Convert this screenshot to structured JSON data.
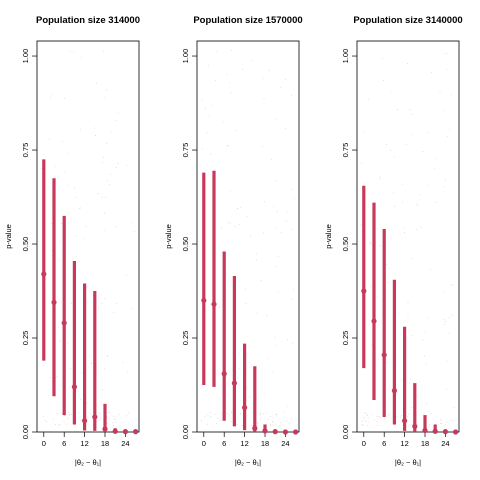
{
  "colors": {
    "accent": "#c8385a",
    "frame": "#000000",
    "noise": "#bdbdbd"
  },
  "ylabel": "p-value",
  "xlabel": "|θ₂ − θ₁|",
  "chart_data": [
    {
      "type": "scatter",
      "title": "Population size 314000",
      "ylabel": "p-value",
      "xlabel": "|θ₂ − θ₁|",
      "xticks": [
        0,
        6,
        12,
        18,
        24
      ],
      "yticks": [
        "0.00",
        "0.25",
        "0.50",
        "0.75",
        "1.00"
      ],
      "xlim": [
        -2,
        28
      ],
      "ylim": [
        0,
        1.04
      ],
      "x": [
        0,
        3,
        6,
        9,
        12,
        15,
        18,
        21,
        24,
        27
      ],
      "median": [
        0.42,
        0.345,
        0.29,
        0.12,
        0.03,
        0.04,
        0.008,
        0.002,
        0.001,
        0.001
      ],
      "lower": [
        0.19,
        0.095,
        0.045,
        0.02,
        0.004,
        0.003,
        0.0,
        0.0,
        0.0,
        0.0
      ],
      "upper": [
        0.725,
        0.675,
        0.575,
        0.455,
        0.395,
        0.375,
        0.075,
        0.01,
        0.005,
        0.004
      ]
    },
    {
      "type": "scatter",
      "title": "Population size 1570000",
      "ylabel": "p-value",
      "xlabel": "|θ₂ − θ₁|",
      "xticks": [
        0,
        6,
        12,
        18,
        24
      ],
      "yticks": [
        "0.00",
        "0.25",
        "0.50",
        "0.75",
        "1.00"
      ],
      "xlim": [
        -2,
        28
      ],
      "ylim": [
        0,
        1.04
      ],
      "x": [
        0,
        3,
        6,
        9,
        12,
        15,
        18,
        21,
        24,
        27
      ],
      "median": [
        0.35,
        0.34,
        0.155,
        0.13,
        0.065,
        0.01,
        0.003,
        0.001,
        0.0,
        0.0
      ],
      "lower": [
        0.125,
        0.12,
        0.03,
        0.015,
        0.005,
        0.0,
        0.0,
        0.0,
        0.0,
        0.0
      ],
      "upper": [
        0.69,
        0.695,
        0.48,
        0.415,
        0.235,
        0.175,
        0.02,
        0.005,
        0.003,
        0.002
      ]
    },
    {
      "type": "scatter",
      "title": "Population size 3140000",
      "ylabel": "p-value",
      "xlabel": "|θ₂ − θ₁|",
      "xticks": [
        0,
        6,
        12,
        18,
        24
      ],
      "yticks": [
        "0.00",
        "0.25",
        "0.50",
        "0.75",
        "1.00"
      ],
      "xlim": [
        -2,
        28
      ],
      "ylim": [
        0,
        1.04
      ],
      "x": [
        0,
        3,
        6,
        9,
        12,
        15,
        18,
        21,
        24,
        27
      ],
      "median": [
        0.375,
        0.295,
        0.205,
        0.11,
        0.03,
        0.015,
        0.004,
        0.002,
        0.001,
        0.0
      ],
      "lower": [
        0.17,
        0.085,
        0.04,
        0.02,
        0.003,
        0.0,
        0.0,
        0.0,
        0.0,
        0.0
      ],
      "upper": [
        0.655,
        0.61,
        0.54,
        0.405,
        0.28,
        0.13,
        0.045,
        0.02,
        0.005,
        0.003
      ]
    }
  ]
}
